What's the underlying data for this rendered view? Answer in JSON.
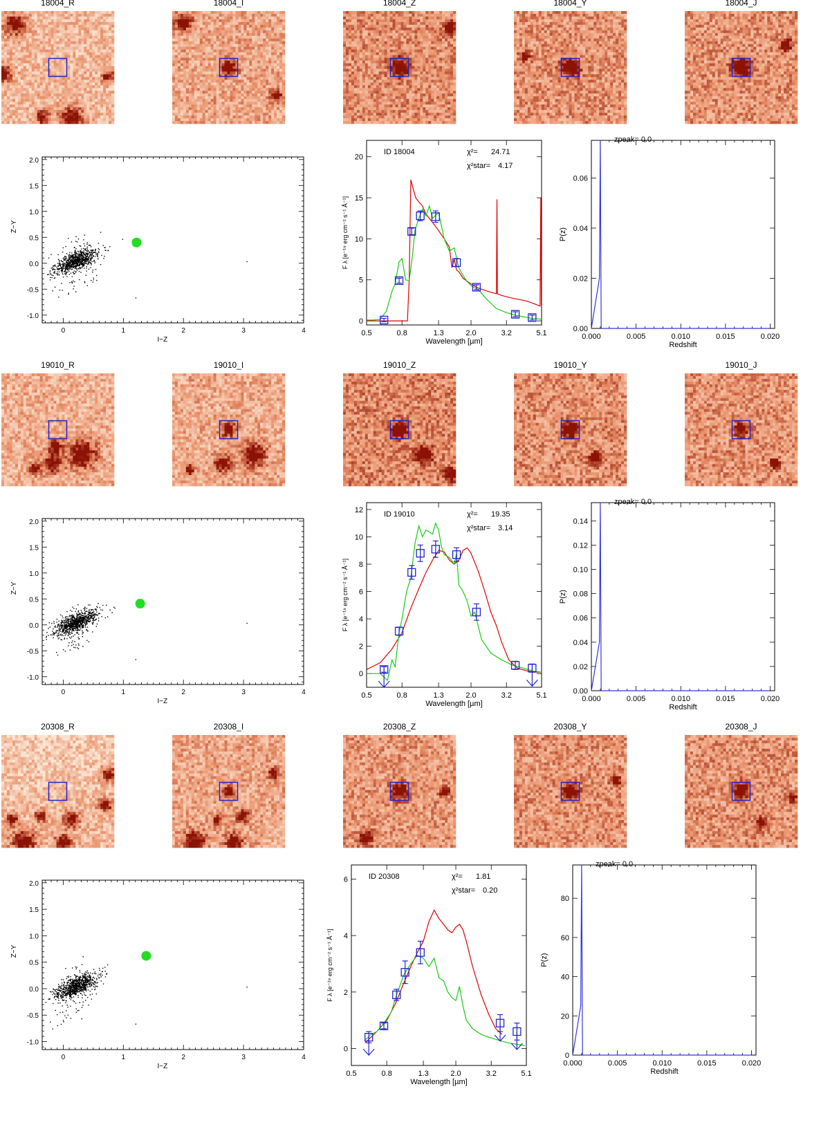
{
  "colors": {
    "stamp_light": "#fbe6d4",
    "stamp_mid": "#e9916a",
    "stamp_dark": "#8b1204",
    "box": "#2222cc",
    "photometry": "#2222cc",
    "galaxy_model": "#14cc14",
    "star_model": "#dd0000",
    "highlight": "#22dd22",
    "pz_line": "#3333dd"
  },
  "stamp_bands": [
    "R",
    "I",
    "Z",
    "Y",
    "J"
  ],
  "colour_colour_axes": {
    "xlabel": "I−Z",
    "ylabel": "Z−Y",
    "xlim": [
      -0.35,
      4.0
    ],
    "ylim": [
      -1.15,
      2.05
    ],
    "xticks": [
      "0",
      "1",
      "2",
      "3",
      "4"
    ],
    "yticks": [
      "2.0",
      "1.5",
      "1.0",
      "0.5",
      "0.0",
      "-0.5",
      "-1.0"
    ]
  },
  "sed_axes": {
    "xlabel": "Wavelength [µm]",
    "ylabel": "F λ [e⁻¹⁹ erg cm⁻² s⁻¹ Å⁻¹]",
    "xticks": [
      "0.5",
      "0.8",
      "1.3",
      "2.0",
      "3.2",
      "5.1"
    ],
    "chi2_label": "χ²=",
    "chi2_star_label": "χ²star="
  },
  "pz_axes": {
    "xlabel": "Redshift",
    "ylabel": "P(z)",
    "xticks": [
      "0.000",
      "0.005",
      "0.010",
      "0.015",
      "0.020"
    ],
    "xlim": [
      0,
      0.0205
    ],
    "zpeak_label": "zpeak= 0.0"
  },
  "objects": [
    {
      "id": "18004",
      "stamp_titles": [
        "18004_R",
        "18004_I",
        "18004_Z",
        "18004_Y",
        "18004_J"
      ],
      "colour_point": {
        "iz": 1.22,
        "zy": 0.4
      },
      "chart_data": [
        {
          "type": "scatter",
          "title": "",
          "xlabel": "I−Z",
          "ylabel": "Z−Y",
          "series": [
            {
              "name": "field sources",
              "n_points": 900
            },
            {
              "name": "object 18004",
              "x": [
                1.22
              ],
              "y": [
                0.4
              ]
            }
          ]
        },
        {
          "type": "line",
          "title": "ID 18004",
          "sed_id_label": "ID 18004",
          "chi2": "24.71",
          "chi2_star": "4.17",
          "ylim": [
            -0.5,
            22
          ],
          "yticks": [
            "0",
            "5",
            "10",
            "15",
            "20"
          ],
          "photometry": {
            "wavelength_um": [
              0.63,
              0.77,
              0.91,
              1.02,
              1.25,
              1.65,
              2.15,
              3.6,
              4.5
            ],
            "flux": [
              0.1,
              4.9,
              10.9,
              12.8,
              12.7,
              7.1,
              4.1,
              0.8,
              0.4
            ],
            "err": [
              0.2,
              0.3,
              0.4,
              0.6,
              0.7,
              0.5,
              0.3,
              0.3,
              0.3
            ],
            "upper_limit": [
              false,
              false,
              false,
              false,
              false,
              false,
              false,
              false,
              false
            ]
          },
          "series": [
            {
              "name": "galaxy model",
              "wavelength_um": [
                0.5,
                0.55,
                0.6,
                0.65,
                0.7,
                0.73,
                0.77,
                0.8,
                0.84,
                0.88,
                0.92,
                0.95,
                1.0,
                1.05,
                1.1,
                1.15,
                1.2,
                1.3,
                1.4,
                1.5,
                1.6,
                1.7,
                1.8,
                1.9,
                2.0,
                2.2,
                2.5,
                2.8,
                3.2,
                3.6,
                4.0,
                4.5,
                5.1
              ],
              "flux": [
                0.1,
                0.1,
                0.2,
                1.2,
                3.6,
                4.5,
                7.2,
                7.6,
                5.0,
                4.9,
                8.0,
                11.0,
                12.5,
                13.6,
                12.8,
                14.0,
                12.5,
                13.2,
                10.0,
                8.5,
                8.9,
                6.5,
                5.5,
                4.8,
                4.3,
                3.8,
                2.5,
                1.5,
                1.0,
                0.7,
                0.5,
                0.3,
                0.2
              ]
            },
            {
              "name": "star model",
              "wavelength_um": [
                0.5,
                0.7,
                0.86,
                0.88,
                0.9,
                0.93,
                0.96,
                1.0,
                1.05,
                1.1,
                1.2,
                1.3,
                1.4,
                1.5,
                1.55,
                1.6,
                1.65,
                1.7,
                1.8,
                2.0,
                2.2,
                2.5,
                2.8,
                2.82,
                2.84,
                3.0,
                3.4,
                3.8,
                4.2,
                4.6,
                5.0,
                5.05,
                5.08,
                5.1
              ],
              "flux": [
                0.0,
                0.0,
                0.0,
                5.0,
                17.2,
                16.0,
                15.0,
                14.5,
                14.0,
                13.0,
                12.0,
                11.0,
                10.0,
                9.0,
                6.5,
                7.5,
                6.2,
                6.0,
                5.2,
                4.5,
                4.0,
                3.6,
                3.3,
                14.8,
                3.3,
                3.1,
                2.8,
                2.6,
                2.4,
                2.1,
                1.8,
                15.0,
                2.0,
                1.8
              ]
            }
          ],
          "xlabel": "Wavelength [µm]",
          "ylabel": "F λ [e⁻¹⁹ erg cm⁻² s⁻¹ Å⁻¹]"
        },
        {
          "type": "line",
          "title": "zpeak= 0.0",
          "xlabel": "Redshift",
          "ylabel": "P(z)",
          "ylim": [
            0,
            0.075
          ],
          "yticks": [
            "0.00",
            "0.02",
            "0.04",
            "0.06"
          ],
          "x": [
            0.0,
            0.0009,
            0.001,
            0.0011,
            0.0015,
            0.02
          ],
          "y": [
            0.0,
            0.02,
            0.075,
            0.0,
            0.0,
            0.0
          ]
        }
      ]
    },
    {
      "id": "19010",
      "stamp_titles": [
        "19010_R",
        "19010_I",
        "19010_Z",
        "19010_Y",
        "19010_J"
      ],
      "colour_point": {
        "iz": 1.28,
        "zy": 0.41
      },
      "chart_data": [
        {
          "type": "scatter",
          "title": "",
          "xlabel": "I−Z",
          "ylabel": "Z−Y",
          "series": [
            {
              "name": "field sources",
              "n_points": 900
            },
            {
              "name": "object 19010",
              "x": [
                1.28
              ],
              "y": [
                0.41
              ]
            }
          ]
        },
        {
          "type": "line",
          "title": "ID 19010",
          "sed_id_label": "ID 19010",
          "chi2": "19.35",
          "chi2_star": "3.14",
          "ylim": [
            -1.0,
            12.5
          ],
          "yticks": [
            "0",
            "2",
            "4",
            "6",
            "8",
            "10",
            "12"
          ],
          "photometry": {
            "wavelength_um": [
              0.63,
              0.77,
              0.91,
              1.02,
              1.25,
              1.65,
              2.15,
              3.6,
              4.5
            ],
            "flux": [
              0.3,
              3.1,
              7.4,
              8.8,
              9.1,
              8.7,
              4.5,
              0.6,
              0.4
            ],
            "err": [
              0.2,
              0.3,
              0.5,
              0.6,
              0.6,
              0.5,
              0.6,
              0.3,
              0.3
            ],
            "upper_limit": [
              true,
              false,
              false,
              false,
              false,
              false,
              false,
              false,
              true
            ]
          },
          "series": [
            {
              "name": "galaxy model",
              "wavelength_um": [
                0.5,
                0.6,
                0.66,
                0.7,
                0.73,
                0.77,
                0.8,
                0.85,
                0.9,
                0.95,
                1.0,
                1.05,
                1.1,
                1.2,
                1.25,
                1.3,
                1.35,
                1.4,
                1.5,
                1.6,
                1.65,
                1.7,
                1.8,
                1.9,
                2.0,
                2.1,
                2.3,
                2.6,
                3.0,
                3.5,
                4.0,
                4.5,
                5.1
              ],
              "flux": [
                0.0,
                0.0,
                -0.5,
                1.0,
                0.5,
                3.0,
                4.0,
                6.0,
                7.0,
                9.5,
                10.8,
                10.0,
                10.5,
                10.2,
                11.0,
                10.5,
                9.3,
                8.7,
                8.5,
                8.0,
                8.8,
                6.5,
                6.0,
                5.3,
                4.2,
                4.5,
                2.5,
                1.5,
                1.0,
                0.6,
                0.4,
                0.2,
                0.1
              ]
            },
            {
              "name": "star model",
              "wavelength_um": [
                0.5,
                0.6,
                0.7,
                0.8,
                0.9,
                1.0,
                1.1,
                1.2,
                1.3,
                1.4,
                1.5,
                1.6,
                1.7,
                1.8,
                1.9,
                2.0,
                2.2,
                2.4,
                2.6,
                2.8,
                3.0,
                3.3,
                3.7,
                4.2,
                4.7,
                5.1
              ],
              "flux": [
                0.3,
                0.8,
                1.8,
                3.0,
                4.8,
                6.2,
                7.4,
                8.3,
                9.0,
                8.9,
                8.3,
                8.0,
                8.3,
                9.0,
                9.2,
                8.8,
                7.5,
                6.0,
                4.5,
                3.5,
                2.3,
                1.0,
                0.4,
                0.2,
                0.1,
                0.1
              ]
            }
          ],
          "xlabel": "Wavelength [µm]",
          "ylabel": "F λ [e⁻¹⁹ erg cm⁻² s⁻¹ Å⁻¹]"
        },
        {
          "type": "line",
          "title": "zpeak= 0.0",
          "xlabel": "Redshift",
          "ylabel": "P(z)",
          "ylim": [
            0,
            0.155
          ],
          "yticks": [
            "0.00",
            "0.02",
            "0.04",
            "0.06",
            "0.08",
            "0.10",
            "0.12",
            "0.14"
          ],
          "x": [
            0.0,
            0.0009,
            0.001,
            0.0011,
            0.0015,
            0.02
          ],
          "y": [
            0.0,
            0.04,
            0.155,
            0.0,
            0.0,
            0.0
          ]
        }
      ]
    },
    {
      "id": "20308",
      "stamp_titles": [
        "20308_R",
        "20308_I",
        "20308_Z",
        "20308_Y",
        "20308_J"
      ],
      "colour_point": {
        "iz": 1.38,
        "zy": 0.62
      },
      "chart_data": [
        {
          "type": "scatter",
          "title": "",
          "xlabel": "I−Z",
          "ylabel": "Z−Y",
          "series": [
            {
              "name": "field sources",
              "n_points": 900
            },
            {
              "name": "object 20308",
              "x": [
                1.38
              ],
              "y": [
                0.62
              ]
            }
          ]
        },
        {
          "type": "line",
          "title": "ID 20308",
          "sed_id_label": "ID 20308",
          "chi2": "1.81",
          "chi2_star": "0.20",
          "ylim": [
            -0.6,
            6.5
          ],
          "yticks": [
            "0",
            "2",
            "4",
            "6"
          ],
          "photometry": {
            "wavelength_um": [
              0.63,
              0.77,
              0.91,
              1.02,
              1.25,
              3.6,
              4.5
            ],
            "flux": [
              0.4,
              0.8,
              1.9,
              2.7,
              3.4,
              0.9,
              0.6
            ],
            "err": [
              0.2,
              0.1,
              0.2,
              0.4,
              0.4,
              0.3,
              0.3
            ],
            "upper_limit": [
              true,
              false,
              false,
              false,
              false,
              true,
              true
            ]
          },
          "series": [
            {
              "name": "galaxy model",
              "wavelength_um": [
                0.6,
                0.65,
                0.7,
                0.77,
                0.85,
                0.9,
                0.95,
                1.0,
                1.05,
                1.1,
                1.2,
                1.3,
                1.4,
                1.5,
                1.6,
                1.7,
                1.8,
                1.9,
                2.0,
                2.1,
                2.2,
                2.3,
                2.5,
                2.8,
                3.1,
                3.5,
                4.0,
                4.5,
                5.0
              ],
              "flux": [
                0.3,
                0.5,
                0.6,
                0.9,
                1.3,
                1.8,
                2.2,
                2.6,
                2.8,
                3.0,
                3.3,
                3.2,
                2.9,
                3.2,
                2.5,
                2.4,
                2.0,
                1.8,
                1.7,
                2.2,
                1.5,
                1.0,
                0.7,
                0.5,
                0.4,
                0.3,
                0.2,
                0.15,
                0.1
              ]
            },
            {
              "name": "star model",
              "wavelength_um": [
                0.6,
                0.7,
                0.8,
                0.9,
                1.0,
                1.1,
                1.2,
                1.3,
                1.4,
                1.5,
                1.6,
                1.7,
                1.8,
                1.9,
                2.0,
                2.1,
                2.2,
                2.3,
                2.5,
                2.8,
                3.1,
                3.4,
                3.7
              ],
              "flux": [
                0.2,
                0.6,
                1.0,
                1.6,
                2.3,
                2.9,
                3.4,
                3.8,
                4.5,
                4.9,
                4.6,
                4.4,
                4.2,
                4.1,
                4.3,
                4.4,
                4.2,
                3.8,
                2.9,
                1.9,
                1.2,
                0.7,
                0.5
              ]
            }
          ],
          "xlabel": "Wavelength [µm]",
          "ylabel": "F λ [e⁻¹⁹ erg cm⁻² s⁻¹ Å⁻¹]"
        },
        {
          "type": "line",
          "title": "zpeak= 0.0",
          "xlabel": "Redshift",
          "ylabel": "P(z)",
          "ylim": [
            0,
            97
          ],
          "yticks": [
            "0",
            "20",
            "40",
            "60",
            "80"
          ],
          "x": [
            0.0,
            0.0009,
            0.001,
            0.0011,
            0.0015,
            0.02
          ],
          "y": [
            0.0,
            25.0,
            97.0,
            0.0,
            0.0,
            0.0
          ]
        }
      ]
    }
  ]
}
